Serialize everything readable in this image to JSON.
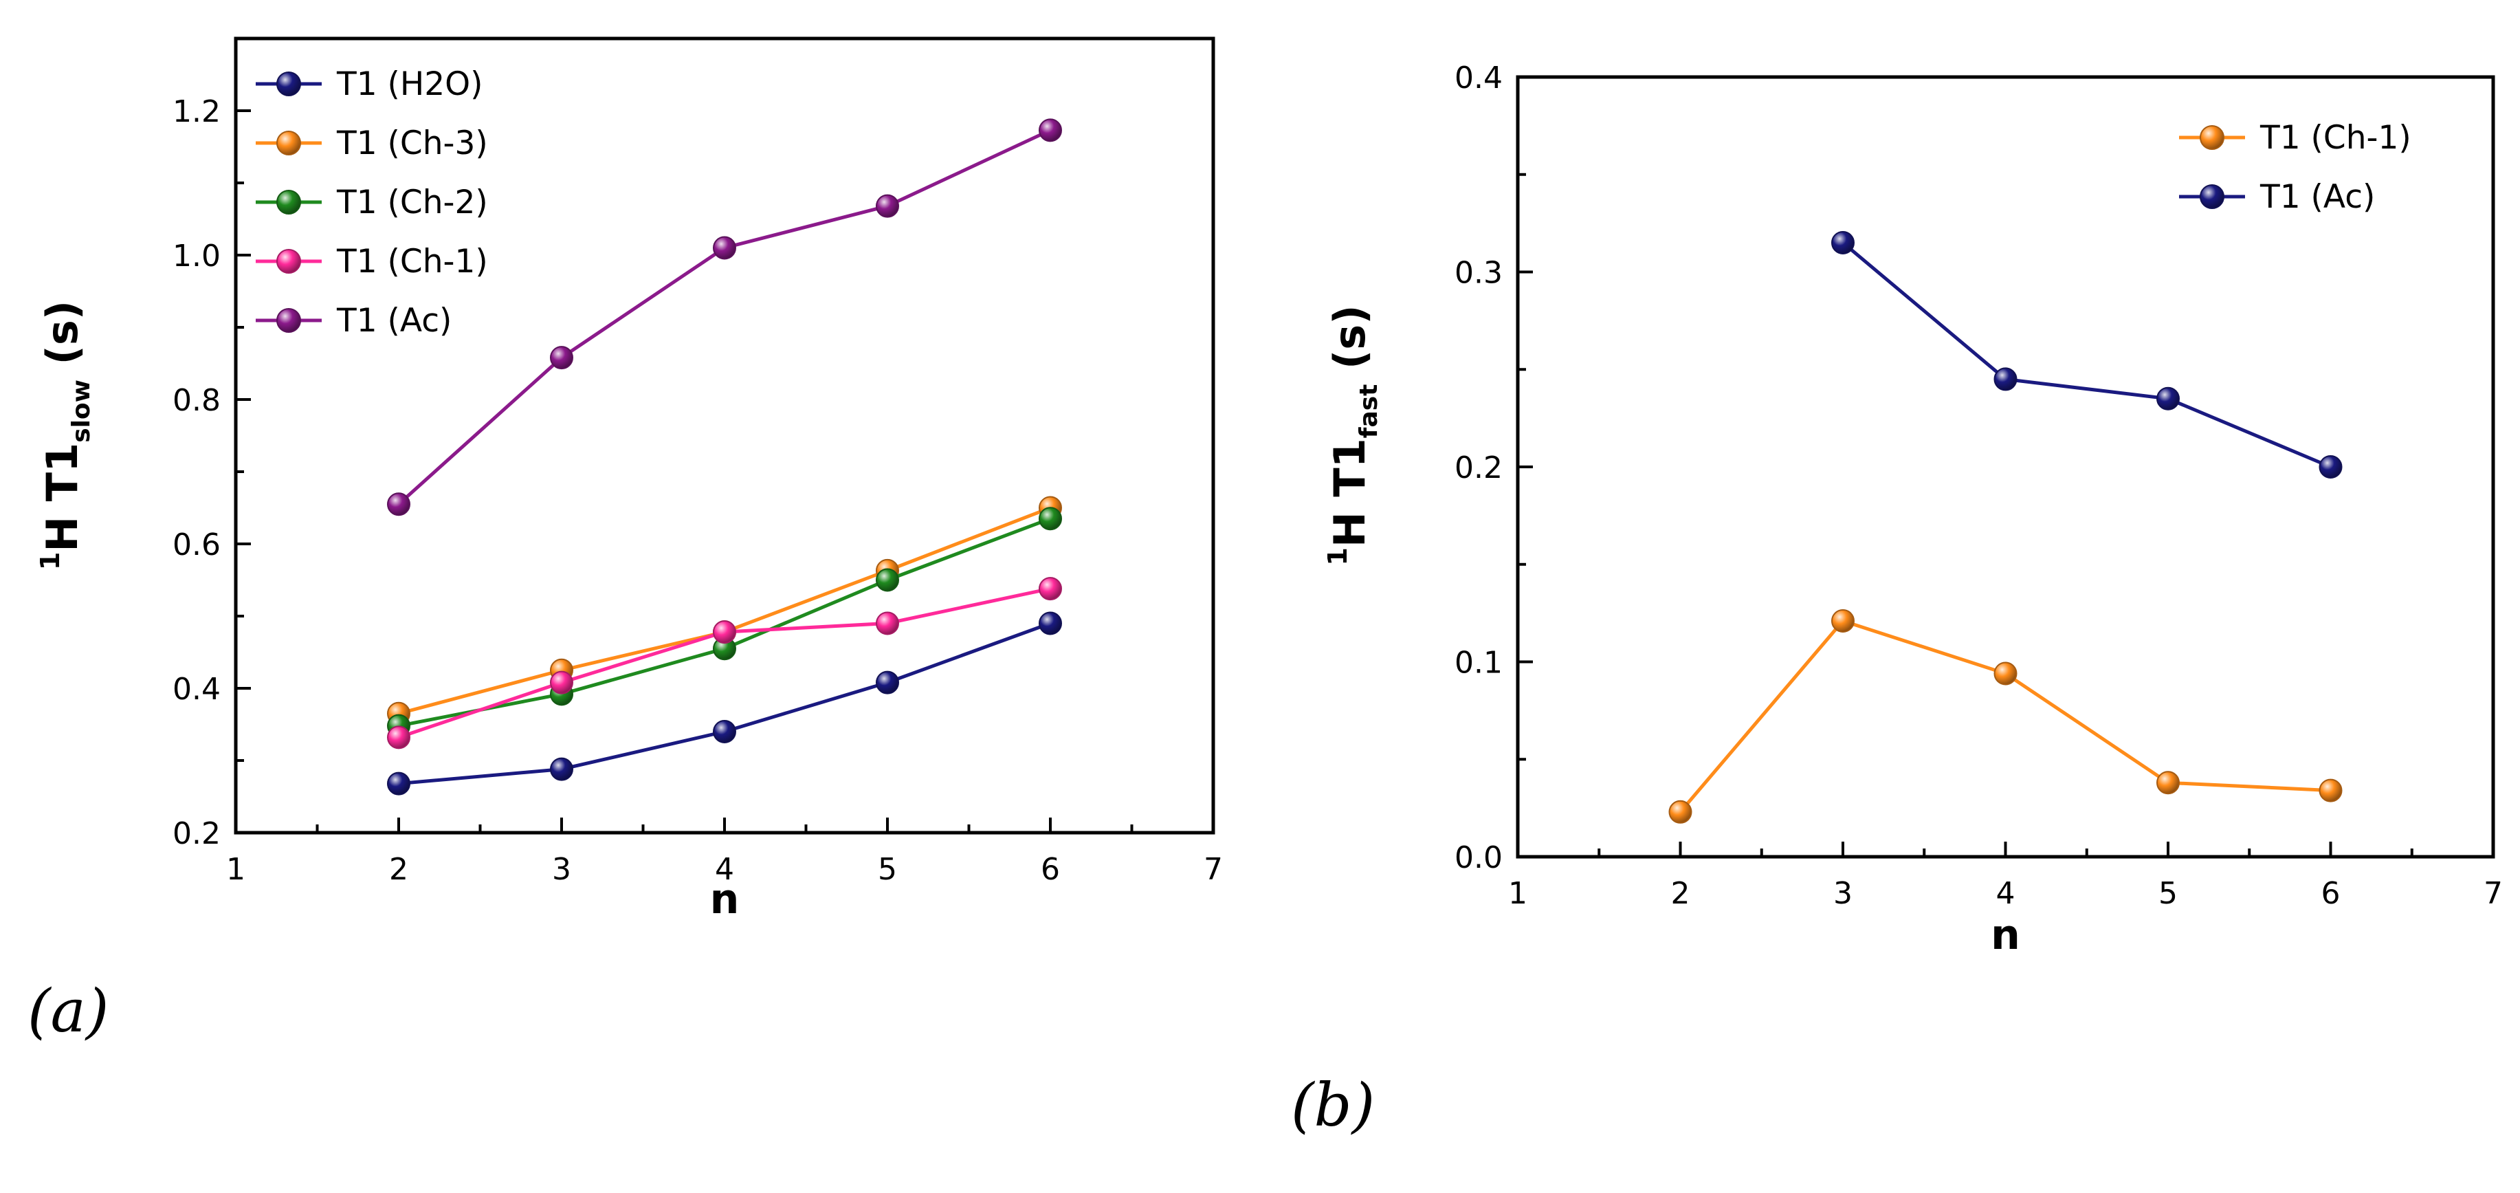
{
  "chart_data": [
    {
      "type": "line",
      "panel_label": "(a)",
      "xlabel": "n",
      "ylabel_main": "H T1",
      "ylabel_sup": "1",
      "ylabel_sub": "slow",
      "ylabel_unit": "(s)",
      "xlim": [
        1,
        7
      ],
      "ylim": [
        0.2,
        1.3
      ],
      "xticks": [
        1,
        2,
        3,
        4,
        5,
        6,
        7
      ],
      "yticks": [
        0.2,
        0.4,
        0.6,
        0.8,
        1.0,
        1.2
      ],
      "ytick_labels": [
        "0.2",
        "0.4",
        "0.6",
        "0.8",
        "1.0",
        "1.2"
      ],
      "legend_position": "top-left",
      "series": [
        {
          "name": "T1 (H2O)",
          "color": "#1a1a80",
          "x": [
            2,
            3,
            4,
            5,
            6
          ],
          "values": [
            0.268,
            0.288,
            0.34,
            0.408,
            0.49
          ]
        },
        {
          "name": "T1 (Ch-3)",
          "color": "#ff8c1a",
          "x": [
            2,
            3,
            4,
            5,
            6
          ],
          "values": [
            0.365,
            0.425,
            0.478,
            0.563,
            0.65
          ]
        },
        {
          "name": "T1 (Ch-2)",
          "color": "#1f8a1f",
          "x": [
            2,
            3,
            4,
            5,
            6
          ],
          "values": [
            0.348,
            0.392,
            0.455,
            0.55,
            0.635
          ]
        },
        {
          "name": "T1 (Ch-1)",
          "color": "#ff2a9a",
          "x": [
            2,
            3,
            4,
            5,
            6
          ],
          "values": [
            0.332,
            0.408,
            0.478,
            0.49,
            0.538
          ]
        },
        {
          "name": "T1 (Ac)",
          "color": "#8b1a8b",
          "x": [
            2,
            3,
            4,
            5,
            6
          ],
          "values": [
            0.655,
            0.858,
            1.01,
            1.068,
            1.173
          ]
        }
      ]
    },
    {
      "type": "line",
      "panel_label": "(b)",
      "xlabel": "n",
      "ylabel_main": "H T1",
      "ylabel_sup": "1",
      "ylabel_sub": "fast",
      "ylabel_unit": "(s)",
      "xlim": [
        1,
        7
      ],
      "ylim": [
        0.0,
        0.4
      ],
      "xticks": [
        1,
        2,
        3,
        4,
        5,
        6,
        7
      ],
      "yticks": [
        0.0,
        0.1,
        0.2,
        0.3,
        0.4
      ],
      "ytick_labels": [
        "0.0",
        "0.1",
        "0.2",
        "0.3",
        "0.4"
      ],
      "legend_position": "top-right",
      "series": [
        {
          "name": "T1 (Ch-1)",
          "color": "#ff8c1a",
          "x": [
            2,
            3,
            4,
            5,
            6
          ],
          "values": [
            0.023,
            0.121,
            0.094,
            0.038,
            0.034
          ]
        },
        {
          "name": "T1 (Ac)",
          "color": "#1a1a80",
          "x": [
            3,
            4,
            5,
            6
          ],
          "values": [
            0.315,
            0.245,
            0.235,
            0.2
          ]
        }
      ]
    }
  ]
}
